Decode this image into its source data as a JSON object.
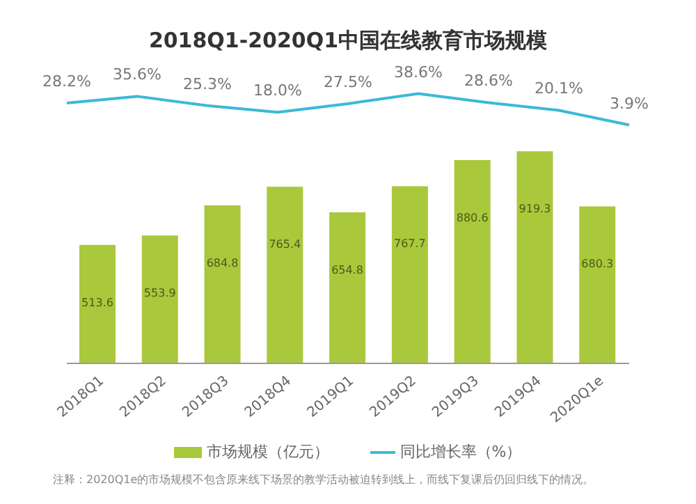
{
  "chart_data": [
    {
      "type": "line",
      "title": "2018Q1-2020Q1中国在线教育市场规模",
      "categories": [
        null,
        null,
        null,
        null,
        null,
        null,
        null,
        null,
        null
      ],
      "series": [
        {
          "name": "同比增长率（%）",
          "color": "#3cb9d6",
          "values": [
            28.2,
            35.6,
            25.3,
            18.0,
            27.5,
            38.6,
            28.6,
            20.1,
            3.9
          ],
          "value_labels": [
            "28.2%",
            "35.6%",
            "25.3%",
            "18.0%",
            "27.5%",
            "38.6%",
            "28.6%",
            "20.1%",
            "3.9%"
          ]
        }
      ],
      "tick_labels": false,
      "legend": "bottom",
      "marker": "none"
    },
    {
      "type": "bar",
      "categories": [
        "2018Q1",
        "2018Q2",
        "2018Q3",
        "2018Q4",
        "2019Q1",
        "2019Q2",
        "2019Q3",
        "2019Q4",
        "2020Q1e"
      ],
      "series": [
        {
          "name": "市场规模（亿元）",
          "color": "#a9c83b",
          "values": [
            513.6,
            553.9,
            684.8,
            765.4,
            654.8,
            767.7,
            880.6,
            919.3,
            680.3
          ]
        }
      ],
      "data_labels": true,
      "tick_labels": "x",
      "legend": "bottom",
      "annotations": [
        "注释：2020Q1e的市场规模不包含原来线下场景的教学活动被迫转到线上，而线下复课后仍回归线下的情况。"
      ]
    }
  ]
}
